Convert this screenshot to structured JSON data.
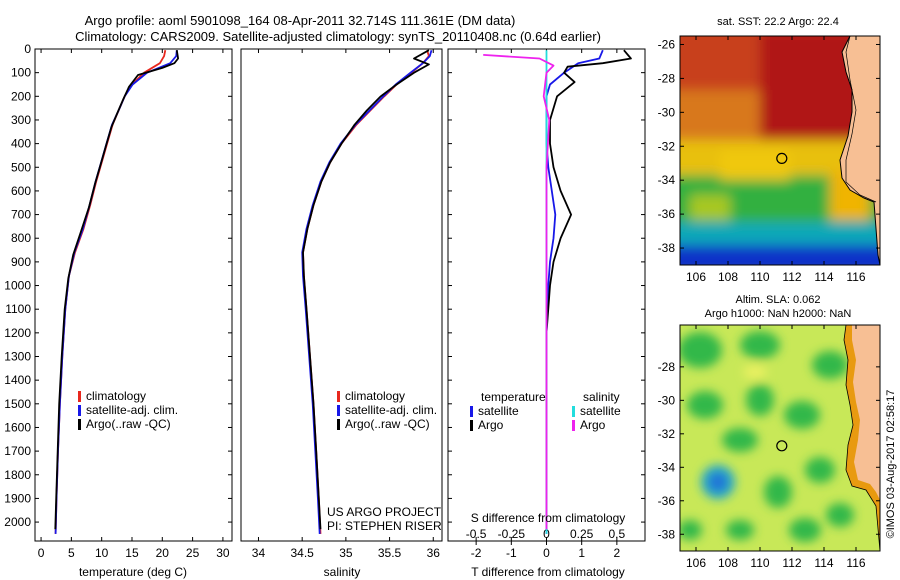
{
  "header": {
    "line1": "Argo profile: aoml 5901098_164 08-Apr-2011 32.714S 111.361E (DM data)",
    "line2": "Climatology: CARS2009. Satellite-adjusted climatology: synTS_20110408.nc (0.64d earlier)"
  },
  "colors": {
    "climatology": "#e8281e",
    "satellite": "#1818e8",
    "argo": "#000000",
    "satellite_salinity": "#22dddd",
    "argo_salinity": "#ee22ee",
    "land": "#f7bf94",
    "coast": "#e89a10"
  },
  "chart_data": [
    {
      "type": "line",
      "id": "temperature",
      "xlabel": "temperature (deg C)",
      "ylabel": "",
      "xlim": [
        -1,
        31.5
      ],
      "ylim": [
        0,
        2080
      ],
      "y_reversed": true,
      "x_ticks": [
        0,
        5,
        10,
        15,
        20,
        25,
        30
      ],
      "y_ticks": [
        0,
        100,
        200,
        300,
        400,
        500,
        600,
        700,
        800,
        900,
        1000,
        1100,
        1200,
        1300,
        1400,
        1500,
        1600,
        1700,
        1800,
        1900,
        2000
      ],
      "legend": [
        "climatology",
        "satellite-adj. clim.",
        "Argo(..raw -QC)"
      ],
      "legend_position": "bottom-right",
      "series": [
        {
          "name": "climatology",
          "color": "#e8281e",
          "points": [
            [
              20.5,
              5
            ],
            [
              20.3,
              30
            ],
            [
              19.6,
              60
            ],
            [
              17.0,
              100
            ],
            [
              15.0,
              150
            ],
            [
              13.8,
              200
            ],
            [
              12.8,
              260
            ],
            [
              11.8,
              320
            ],
            [
              10.9,
              400
            ],
            [
              10.0,
              480
            ],
            [
              9.1,
              560
            ],
            [
              8.1,
              660
            ],
            [
              7.0,
              760
            ],
            [
              5.6,
              860
            ],
            [
              4.6,
              960
            ],
            [
              4.0,
              1100
            ],
            [
              3.5,
              1300
            ],
            [
              3.1,
              1500
            ],
            [
              2.8,
              1700
            ],
            [
              2.55,
              1900
            ],
            [
              2.4,
              2050
            ]
          ]
        },
        {
          "name": "satellite-adj. clim.",
          "color": "#1818e8",
          "points": [
            [
              22.4,
              5
            ],
            [
              22.3,
              30
            ],
            [
              21.3,
              60
            ],
            [
              17.5,
              100
            ],
            [
              15.1,
              150
            ],
            [
              13.8,
              200
            ],
            [
              12.8,
              260
            ],
            [
              11.7,
              320
            ],
            [
              10.8,
              400
            ],
            [
              9.9,
              480
            ],
            [
              9.0,
              560
            ],
            [
              8.0,
              660
            ],
            [
              6.9,
              760
            ],
            [
              5.5,
              860
            ],
            [
              4.6,
              960
            ],
            [
              4.0,
              1100
            ],
            [
              3.5,
              1300
            ],
            [
              3.1,
              1500
            ],
            [
              2.8,
              1700
            ],
            [
              2.55,
              1900
            ],
            [
              2.4,
              2050
            ]
          ]
        },
        {
          "name": "Argo(..raw -QC)",
          "color": "#000000",
          "points": [
            [
              22.4,
              5
            ],
            [
              22.6,
              40
            ],
            [
              22.0,
              60
            ],
            [
              20.0,
              80
            ],
            [
              16.0,
              110
            ],
            [
              14.5,
              160
            ],
            [
              13.6,
              210
            ],
            [
              12.6,
              270
            ],
            [
              11.6,
              330
            ],
            [
              10.7,
              410
            ],
            [
              9.8,
              490
            ],
            [
              8.9,
              570
            ],
            [
              7.9,
              670
            ],
            [
              6.6,
              770
            ],
            [
              5.3,
              870
            ],
            [
              4.5,
              970
            ],
            [
              3.9,
              1100
            ],
            [
              3.4,
              1300
            ],
            [
              3.0,
              1500
            ],
            [
              2.75,
              1700
            ],
            [
              2.5,
              1900
            ],
            [
              2.35,
              2030
            ]
          ]
        }
      ]
    },
    {
      "type": "line",
      "id": "salinity",
      "xlabel": "salinity",
      "xlim": [
        33.8,
        36.1
      ],
      "ylim": [
        0,
        2080
      ],
      "y_reversed": true,
      "x_ticks": [
        34,
        34.5,
        35,
        35.5,
        36
      ],
      "legend": [
        "climatology",
        "satellite-adj. clim.",
        "Argo(..raw -QC)"
      ],
      "legend_position": "bottom-right",
      "annotation": [
        "US ARGO PROJECT",
        "PI: STEPHEN RISER"
      ],
      "series": [
        {
          "name": "climatology",
          "color": "#e8281e",
          "points": [
            [
              35.93,
              5
            ],
            [
              35.95,
              30
            ],
            [
              35.88,
              60
            ],
            [
              35.75,
              100
            ],
            [
              35.58,
              150
            ],
            [
              35.44,
              200
            ],
            [
              35.28,
              260
            ],
            [
              35.12,
              320
            ],
            [
              34.95,
              400
            ],
            [
              34.82,
              480
            ],
            [
              34.72,
              560
            ],
            [
              34.63,
              660
            ],
            [
              34.56,
              760
            ],
            [
              34.51,
              860
            ],
            [
              34.52,
              960
            ],
            [
              34.55,
              1100
            ],
            [
              34.59,
              1300
            ],
            [
              34.63,
              1500
            ],
            [
              34.66,
              1700
            ],
            [
              34.69,
              1900
            ],
            [
              34.71,
              2050
            ]
          ]
        },
        {
          "name": "satellite-adj. clim.",
          "color": "#1818e8",
          "points": [
            [
              35.98,
              5
            ],
            [
              35.96,
              30
            ],
            [
              35.88,
              60
            ],
            [
              35.74,
              100
            ],
            [
              35.57,
              150
            ],
            [
              35.43,
              200
            ],
            [
              35.27,
              260
            ],
            [
              35.11,
              320
            ],
            [
              34.94,
              400
            ],
            [
              34.81,
              480
            ],
            [
              34.71,
              560
            ],
            [
              34.62,
              660
            ],
            [
              34.55,
              760
            ],
            [
              34.5,
              860
            ],
            [
              34.51,
              960
            ],
            [
              34.54,
              1100
            ],
            [
              34.58,
              1300
            ],
            [
              34.62,
              1500
            ],
            [
              34.65,
              1700
            ],
            [
              34.68,
              1900
            ],
            [
              34.7,
              2050
            ]
          ]
        },
        {
          "name": "Argo(..raw -QC)",
          "color": "#000000",
          "points": [
            [
              35.95,
              5
            ],
            [
              35.78,
              40
            ],
            [
              35.95,
              65
            ],
            [
              35.78,
              100
            ],
            [
              35.58,
              150
            ],
            [
              35.4,
              200
            ],
            [
              35.24,
              260
            ],
            [
              35.1,
              320
            ],
            [
              34.95,
              400
            ],
            [
              34.82,
              480
            ],
            [
              34.72,
              560
            ],
            [
              34.63,
              660
            ],
            [
              34.56,
              760
            ],
            [
              34.51,
              860
            ],
            [
              34.52,
              960
            ],
            [
              34.55,
              1100
            ],
            [
              34.59,
              1300
            ],
            [
              34.63,
              1500
            ],
            [
              34.66,
              1700
            ],
            [
              34.69,
              1900
            ],
            [
              34.71,
              2030
            ]
          ]
        }
      ]
    },
    {
      "type": "line",
      "id": "difference",
      "xlabel": "T difference from climatology",
      "xlabel_top": "S difference from climatology",
      "xlim": [
        -2.8,
        2.8
      ],
      "ylim": [
        0,
        2080
      ],
      "y_reversed": true,
      "x_ticks": [
        -2,
        -1,
        0,
        1,
        2
      ],
      "x_ticks_s": [
        "-0.5",
        "-0.25",
        "0",
        "0.25",
        "0.5"
      ],
      "x_ticks_s_values": [
        -0.5,
        -0.25,
        0,
        0.25,
        0.5
      ],
      "legend_temperature_title": "temperature",
      "legend_salinity_title": "salinity",
      "legend_temperature": [
        "satellite",
        "Argo"
      ],
      "legend_salinity": [
        "satellite",
        "Argo"
      ],
      "series": [
        {
          "name": "satellite",
          "group": "temperature",
          "color": "#1818e8",
          "points": [
            [
              1.6,
              5
            ],
            [
              1.5,
              40
            ],
            [
              0.9,
              60
            ],
            [
              0.5,
              100
            ],
            [
              0.1,
              150
            ],
            [
              0.0,
              200
            ],
            [
              0.0,
              300
            ],
            [
              0.0,
              400
            ],
            [
              0.05,
              500
            ],
            [
              0.15,
              600
            ],
            [
              0.25,
              700
            ],
            [
              0.2,
              800
            ],
            [
              0.1,
              900
            ],
            [
              0.05,
              1000
            ],
            [
              0.0,
              1200
            ],
            [
              0.0,
              1500
            ],
            [
              0.0,
              1800
            ],
            [
              0.0,
              2050
            ]
          ]
        },
        {
          "name": "Argo",
          "group": "temperature",
          "color": "#000000",
          "points": [
            [
              2.2,
              5
            ],
            [
              2.4,
              40
            ],
            [
              1.6,
              60
            ],
            [
              0.6,
              75
            ],
            [
              0.5,
              100
            ],
            [
              0.8,
              140
            ],
            [
              0.3,
              200
            ],
            [
              0.1,
              300
            ],
            [
              0.1,
              400
            ],
            [
              0.2,
              500
            ],
            [
              0.4,
              600
            ],
            [
              0.7,
              700
            ],
            [
              0.4,
              800
            ],
            [
              0.2,
              900
            ],
            [
              0.1,
              1000
            ],
            [
              0.0,
              1200
            ],
            [
              0.0,
              1500
            ],
            [
              0.0,
              1800
            ],
            [
              0.0,
              2030
            ]
          ]
        },
        {
          "name": "satellite",
          "group": "salinity",
          "color": "#22dddd",
          "points": [
            [
              0.0,
              5
            ],
            [
              0.0,
              100
            ],
            [
              0.0,
              300
            ],
            [
              0.0,
              600
            ],
            [
              0.0,
              900
            ],
            [
              0.0,
              1200
            ],
            [
              0.0,
              1500
            ],
            [
              0.0,
              1800
            ],
            [
              0.0,
              2050
            ]
          ]
        },
        {
          "name": "Argo",
          "group": "salinity",
          "color": "#ee22ee",
          "points": [
            [
              -0.45,
              25
            ],
            [
              -0.05,
              40
            ],
            [
              0.05,
              70
            ],
            [
              0.0,
              100
            ],
            [
              -0.02,
              200
            ],
            [
              0.02,
              300
            ],
            [
              0.0,
              500
            ],
            [
              0.0,
              800
            ],
            [
              0.0,
              1200
            ],
            [
              0.0,
              1600
            ],
            [
              0.0,
              2030
            ]
          ]
        }
      ]
    },
    {
      "type": "heatmap",
      "id": "sst_map",
      "title": "sat. SST: 22.2  Argo: 22.4",
      "xlim": [
        105,
        117.5
      ],
      "ylim": [
        -39,
        -25.5
      ],
      "x_ticks": [
        106,
        108,
        110,
        112,
        114,
        116
      ],
      "y_ticks": [
        -26,
        -28,
        -30,
        -32,
        -34,
        -36,
        -38
      ],
      "marker": {
        "lon": 111.361,
        "lat": -32.714
      }
    },
    {
      "type": "heatmap",
      "id": "sla_map",
      "title_line1": "Altim. SLA: 0.062",
      "title_line2": "Argo h1000: NaN h2000: NaN",
      "xlim": [
        105,
        117.5
      ],
      "ylim": [
        -39,
        -25.5
      ],
      "x_ticks": [
        106,
        108,
        110,
        112,
        114,
        116
      ],
      "y_ticks": [
        -28,
        -30,
        -32,
        -34,
        -36,
        -38
      ],
      "marker": {
        "lon": 111.361,
        "lat": -32.714
      }
    }
  ],
  "credit": "©IMOS 03-Aug-2017 02:58:17"
}
